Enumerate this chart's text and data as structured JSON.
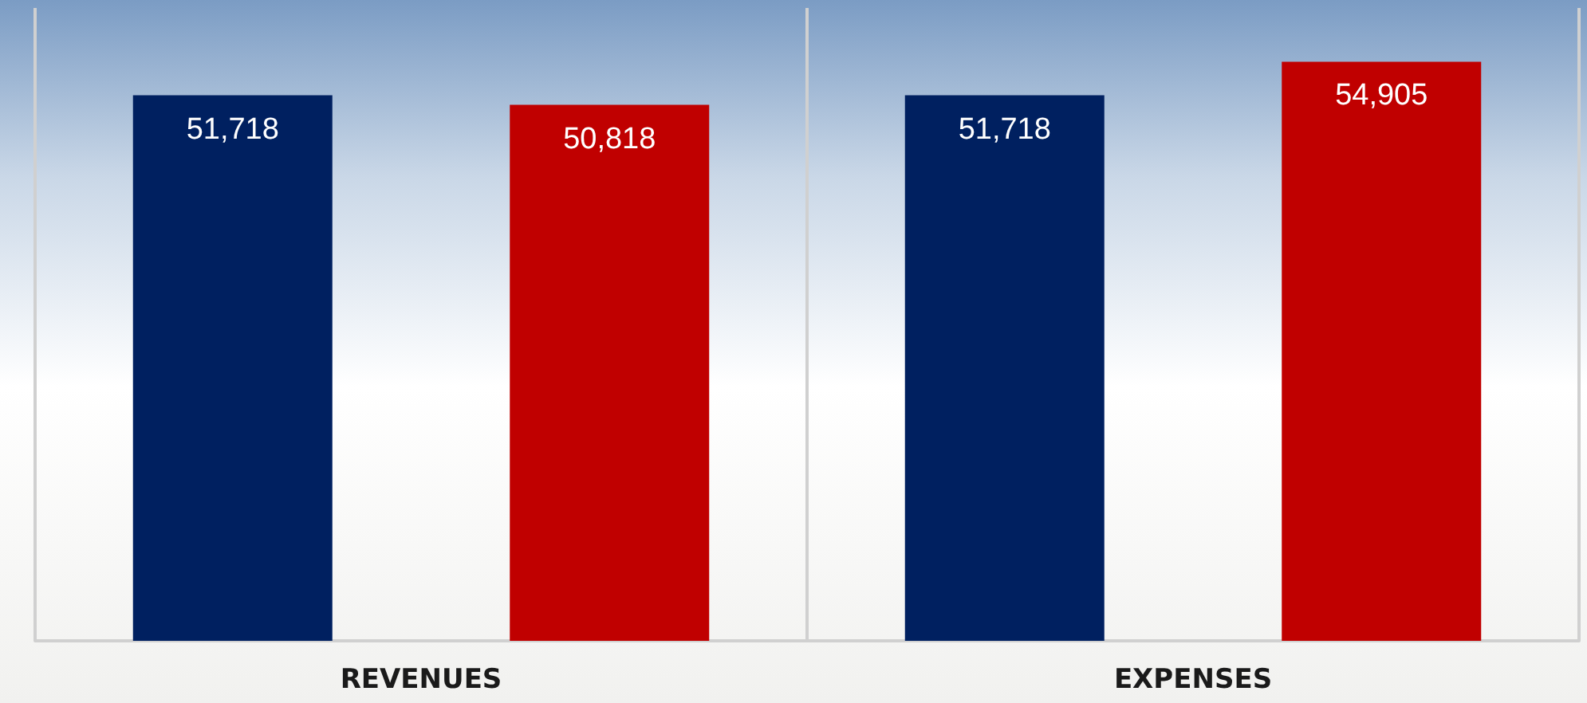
{
  "chart_data": {
    "type": "bar",
    "categories": [
      "REVENUES",
      "EXPENSES"
    ],
    "series": [
      {
        "color": "#002060",
        "values": [
          51718,
          51718
        ],
        "value_labels": [
          "51,718",
          "51,718"
        ]
      },
      {
        "color": "#c00000",
        "values": [
          50818,
          54905
        ],
        "value_labels": [
          "50,818",
          "54,905"
        ]
      }
    ],
    "grid": "x",
    "tick_labels": "x"
  }
}
